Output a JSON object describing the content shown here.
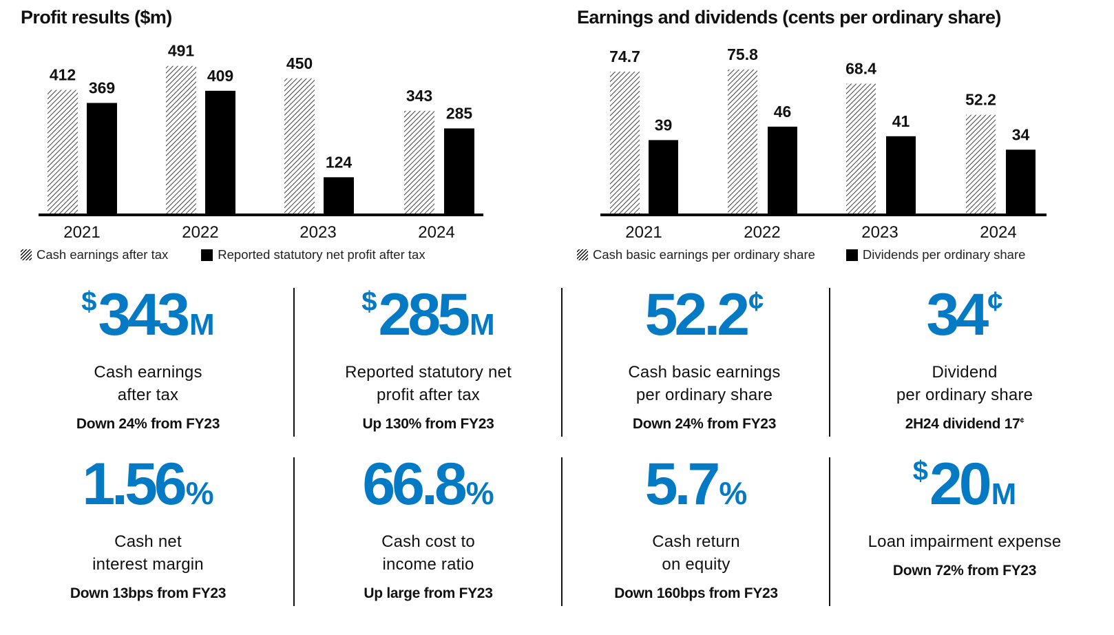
{
  "chart_data": [
    {
      "type": "bar",
      "title": "Profit results ($m)",
      "categories": [
        "2021",
        "2022",
        "2023",
        "2024"
      ],
      "series": [
        {
          "name": "Cash earnings after tax",
          "pattern": "hatched",
          "values": [
            412,
            491,
            450,
            343
          ]
        },
        {
          "name": "Reported statutory net profit after tax",
          "pattern": "solid",
          "values": [
            369,
            409,
            124,
            285
          ]
        }
      ],
      "xlabel": "",
      "ylabel": "",
      "ylim": [
        0,
        500
      ],
      "grid": false,
      "legend_position": "bottom-left",
      "data_labels": true
    },
    {
      "type": "bar",
      "title": "Earnings and dividends (cents per ordinary share)",
      "categories": [
        "2021",
        "2022",
        "2023",
        "2024"
      ],
      "series": [
        {
          "name": "Cash basic earnings per ordinary share",
          "pattern": "hatched",
          "values": [
            74.7,
            75.8,
            68.4,
            52.2
          ]
        },
        {
          "name": "Dividends per ordinary share",
          "pattern": "solid",
          "values": [
            39,
            46,
            41,
            34
          ]
        }
      ],
      "xlabel": "",
      "ylabel": "",
      "ylim": [
        0,
        80
      ],
      "grid": false,
      "legend_position": "bottom-left",
      "data_labels": true
    }
  ],
  "colors": {
    "accent_blue": "#0479c4",
    "bar_solid": "#000000",
    "text": "#111111"
  },
  "kpis": [
    {
      "prefix": "$",
      "value": "343",
      "suffix": "M",
      "suffix_type": "m",
      "desc_lines": [
        "Cash earnings",
        "after tax"
      ],
      "change": "Down 24% from FY23"
    },
    {
      "prefix": "$",
      "value": "285",
      "suffix": "M",
      "suffix_type": "m",
      "desc_lines": [
        "Reported statutory net",
        "profit after tax"
      ],
      "change": "Up 130% from FY23"
    },
    {
      "prefix": "",
      "value": "52.2",
      "suffix": "¢",
      "suffix_type": "c",
      "desc_lines": [
        "Cash basic earnings",
        "per ordinary share"
      ],
      "change": "Down 24% from FY23"
    },
    {
      "prefix": "",
      "value": "34",
      "suffix": "¢",
      "suffix_type": "c",
      "desc_lines": [
        "Dividend",
        "per ordinary share"
      ],
      "change": "2H24 dividend 17",
      "change_sup": "¢"
    },
    {
      "prefix": "",
      "value": "1.56",
      "suffix": "%",
      "suffix_type": "p",
      "desc_lines": [
        "Cash net",
        "interest margin"
      ],
      "change": "Down 13bps from FY23"
    },
    {
      "prefix": "",
      "value": "66.8",
      "suffix": "%",
      "suffix_type": "p",
      "desc_lines": [
        "Cash cost to",
        "income ratio"
      ],
      "change": "Up large from FY23"
    },
    {
      "prefix": "",
      "value": "5.7",
      "suffix": "%",
      "suffix_type": "p",
      "desc_lines": [
        "Cash return",
        "on equity"
      ],
      "change": "Down 160bps from FY23"
    },
    {
      "prefix": "$",
      "value": "20",
      "suffix": "M",
      "suffix_type": "m",
      "desc_lines": [
        "Loan impairment expense"
      ],
      "change": "Down 72% from FY23"
    }
  ]
}
